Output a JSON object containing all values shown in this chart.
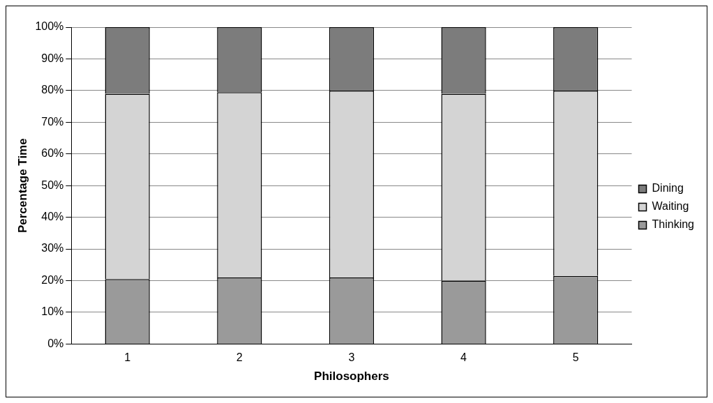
{
  "chart_data": {
    "type": "bar",
    "stacked": true,
    "xlabel": "Philosophers",
    "ylabel": "Percentage Time",
    "categories": [
      "1",
      "2",
      "3",
      "4",
      "5"
    ],
    "series": [
      {
        "name": "Thinking",
        "color": "#9a9a9a",
        "values": [
          20.5,
          21,
          21,
          20,
          21.5
        ]
      },
      {
        "name": "Waiting",
        "color": "#d4d4d4",
        "values": [
          58.5,
          58.5,
          59,
          59,
          58.5
        ]
      },
      {
        "name": "Dining",
        "color": "#7c7c7c",
        "values": [
          21,
          20.5,
          20,
          21,
          20
        ]
      }
    ],
    "ylim": [
      0,
      100
    ],
    "yticks": [
      {
        "value": 0,
        "label": "0%"
      },
      {
        "value": 10,
        "label": "10%"
      },
      {
        "value": 20,
        "label": "20%"
      },
      {
        "value": 30,
        "label": "30%"
      },
      {
        "value": 40,
        "label": "40%"
      },
      {
        "value": 50,
        "label": "50%"
      },
      {
        "value": 60,
        "label": "60%"
      },
      {
        "value": 70,
        "label": "70%"
      },
      {
        "value": 80,
        "label": "80%"
      },
      {
        "value": 90,
        "label": "90%"
      },
      {
        "value": 100,
        "label": "100%"
      }
    ],
    "grid": "y",
    "legend": "right"
  }
}
